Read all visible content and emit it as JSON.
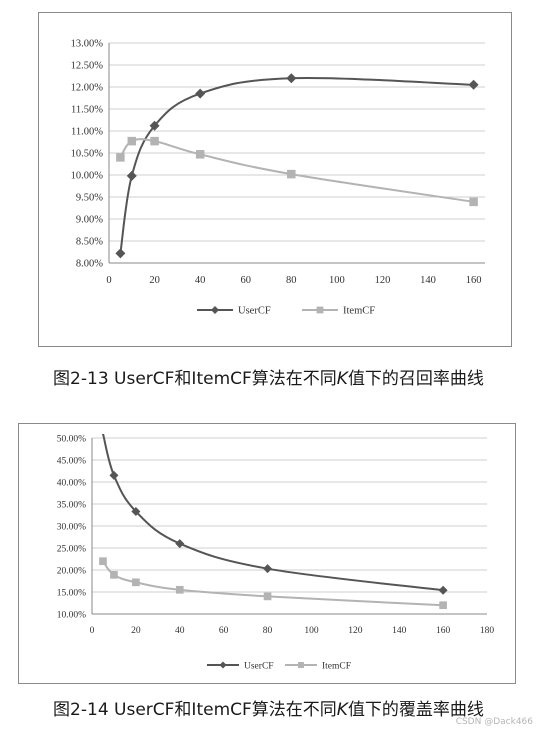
{
  "chart_data": [
    {
      "type": "line",
      "xlim": [
        0,
        165
      ],
      "ylim": [
        8.0,
        13.0
      ],
      "x_ticks": [
        0,
        20,
        40,
        60,
        80,
        100,
        120,
        140,
        160
      ],
      "y_ticks": [
        "8.00%",
        "8.50%",
        "9.00%",
        "9.50%",
        "10.00%",
        "10.50%",
        "11.00%",
        "11.50%",
        "12.00%",
        "12.50%",
        "13.00%"
      ],
      "grid": "horizontal",
      "legend": "bottom-center",
      "series": [
        {
          "name": "UserCF",
          "color": "#555555",
          "marker": "diamond",
          "x": [
            5,
            10,
            20,
            40,
            80,
            160
          ],
          "y": [
            8.22,
            9.98,
            11.12,
            11.85,
            12.2,
            12.05
          ]
        },
        {
          "name": "ItemCF",
          "color": "#b3b3b3",
          "marker": "square",
          "x": [
            5,
            10,
            20,
            40,
            80,
            160
          ],
          "y": [
            10.4,
            10.77,
            10.77,
            10.47,
            10.02,
            9.39
          ]
        }
      ]
    },
    {
      "type": "line",
      "xlim": [
        0,
        180
      ],
      "ylim": [
        10.0,
        50.0
      ],
      "x_ticks": [
        0,
        20,
        40,
        60,
        80,
        100,
        120,
        140,
        160,
        180
      ],
      "y_ticks": [
        "10.00%",
        "15.00%",
        "20.00%",
        "25.00%",
        "30.00%",
        "35.00%",
        "40.00%",
        "45.00%",
        "50.00%"
      ],
      "grid": "horizontal",
      "legend": "bottom-center",
      "series": [
        {
          "name": "UserCF",
          "color": "#555555",
          "marker": "diamond",
          "x": [
            5,
            10,
            20,
            40,
            80,
            160
          ],
          "y": [
            51.0,
            41.5,
            33.3,
            26.0,
            20.3,
            15.4
          ]
        },
        {
          "name": "ItemCF",
          "color": "#b3b3b3",
          "marker": "square",
          "x": [
            5,
            10,
            20,
            40,
            80,
            160
          ],
          "y": [
            22.0,
            18.9,
            17.2,
            15.5,
            14.0,
            12.0
          ]
        }
      ]
    }
  ],
  "captions": {
    "fig1": {
      "prefix": "图2-13 UserCF和ItemCF算法在不同",
      "k": "K",
      "suffix": "值下的召回率曲线"
    },
    "fig2": {
      "prefix": "图2-14 UserCF和ItemCF算法在不同",
      "k": "K",
      "suffix": "值下的覆盖率曲线"
    }
  },
  "watermark": "CSDN @Dack466"
}
